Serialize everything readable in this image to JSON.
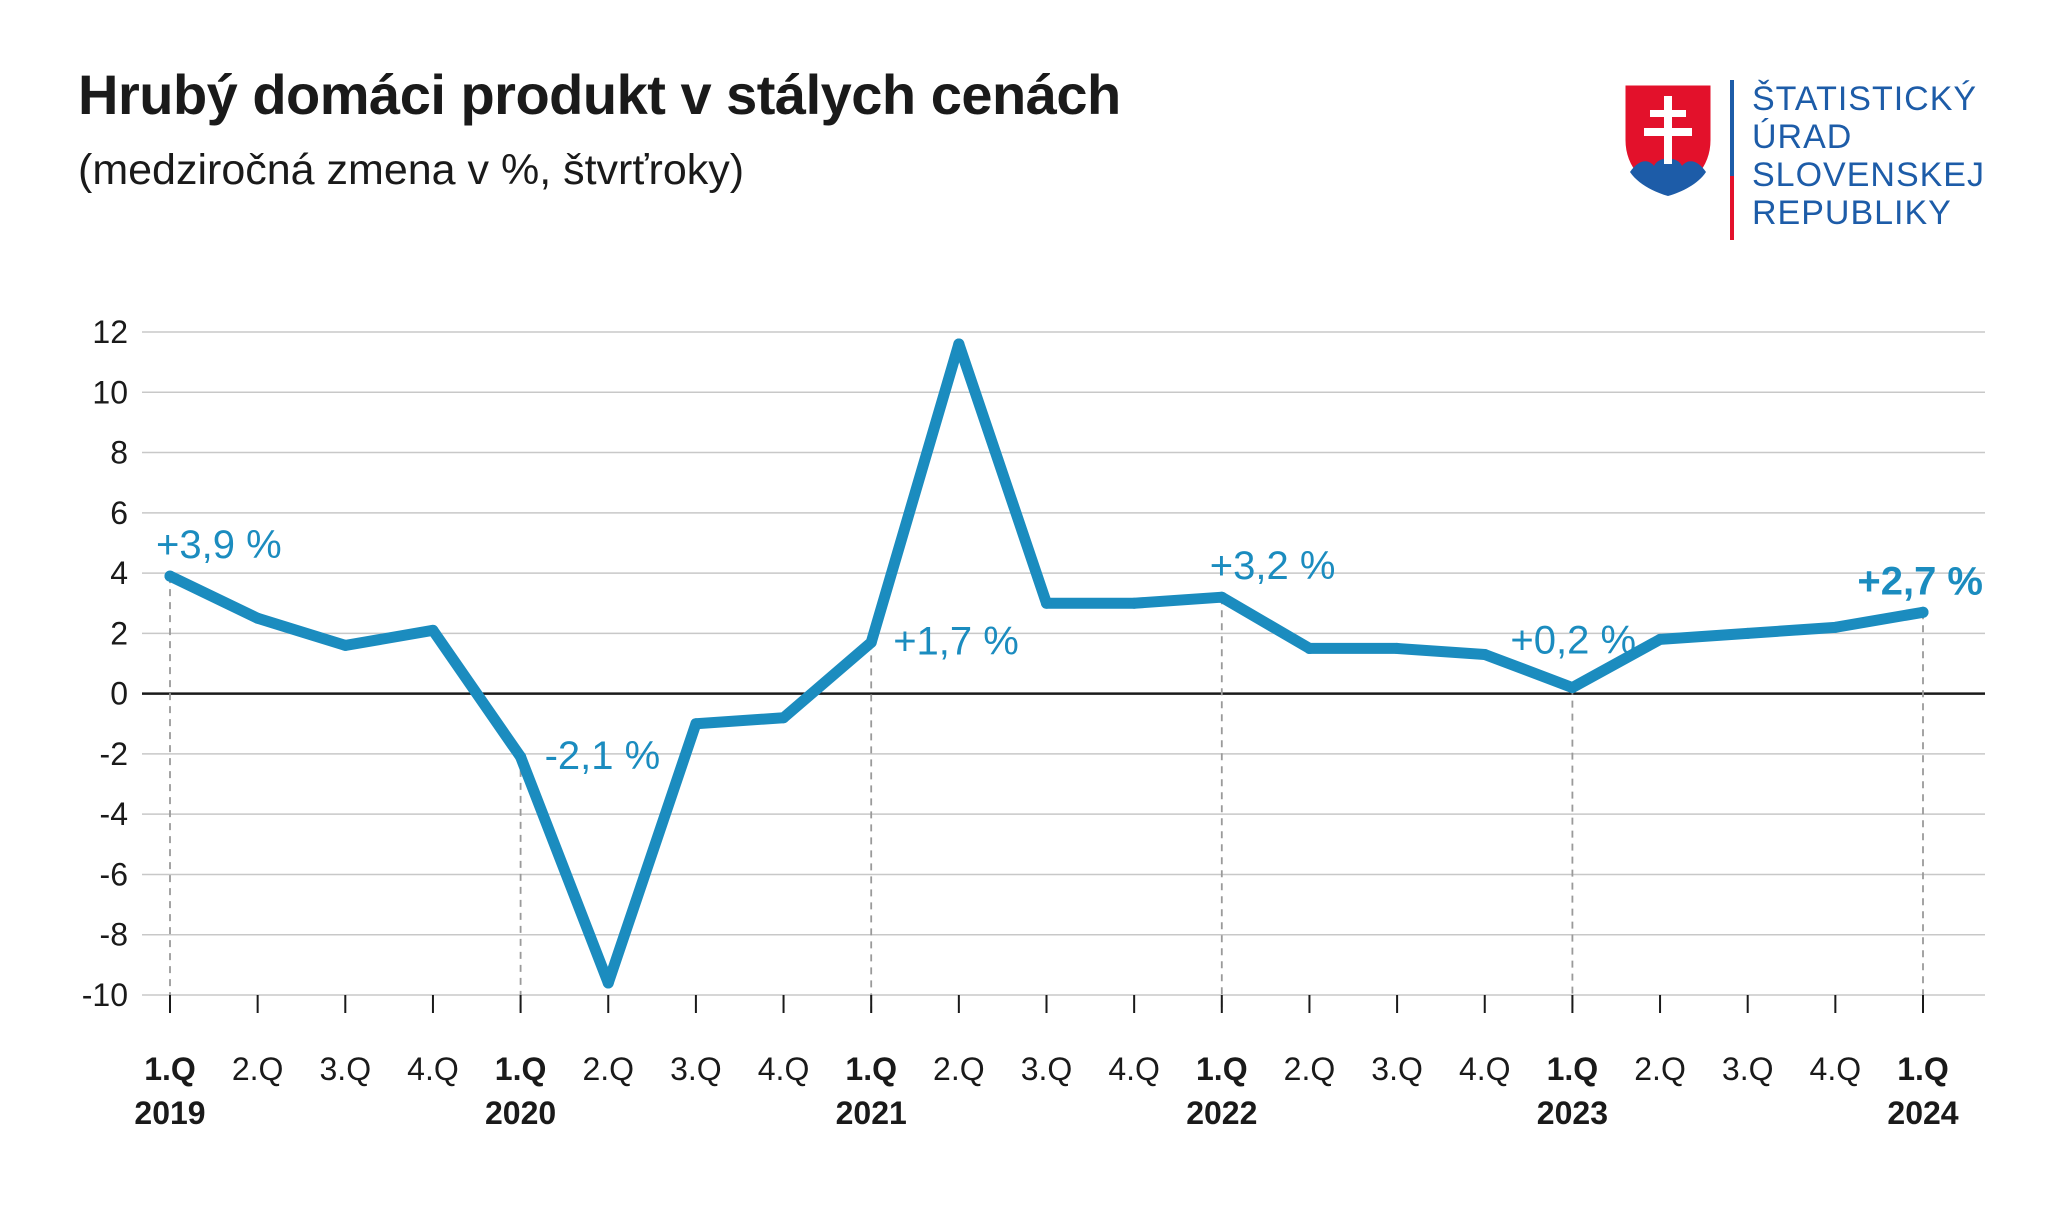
{
  "header": {
    "title": "Hrubý domáci produkt v stálych cenách",
    "subtitle": "(medziročná zmena v %, štvrťroky)"
  },
  "logo": {
    "lines": [
      "ŠTATISTICKÝ",
      "ÚRAD",
      "SLOVENSKEJ",
      "REPUBLIKY"
    ],
    "icon": "slovak-coat-of-arms-icon"
  },
  "colors": {
    "line": "#1b8cbf",
    "grid": "#c8c8c8",
    "zero_line": "#1a1a1a",
    "brand_blue": "#1d5ca8",
    "brand_red": "#e3112b"
  },
  "chart_data": {
    "type": "line",
    "title": "Hrubý domáci produkt v stálych cenách",
    "subtitle": "(medziročná zmena v %, štvrťroky)",
    "ylim": [
      -10,
      12
    ],
    "yticks": [
      12,
      10,
      8,
      6,
      4,
      2,
      0,
      -2,
      -4,
      -6,
      -8,
      -10
    ],
    "grid": true,
    "categories": [
      "1.Q 2019",
      "2.Q",
      "3.Q",
      "4.Q",
      "1.Q 2020",
      "2.Q",
      "3.Q",
      "4.Q",
      "1.Q 2021",
      "2.Q",
      "3.Q",
      "4.Q",
      "1.Q 2022",
      "2.Q",
      "3.Q",
      "4.Q",
      "1.Q 2023",
      "2.Q",
      "3.Q",
      "4.Q",
      "1.Q 2024"
    ],
    "xtick_labels": [
      {
        "q": "1.Q",
        "year": "2019"
      },
      {
        "q": "2.Q",
        "year": ""
      },
      {
        "q": "3.Q",
        "year": ""
      },
      {
        "q": "4.Q",
        "year": ""
      },
      {
        "q": "1.Q",
        "year": "2020"
      },
      {
        "q": "2.Q",
        "year": ""
      },
      {
        "q": "3.Q",
        "year": ""
      },
      {
        "q": "4.Q",
        "year": ""
      },
      {
        "q": "1.Q",
        "year": "2021"
      },
      {
        "q": "2.Q",
        "year": ""
      },
      {
        "q": "3.Q",
        "year": ""
      },
      {
        "q": "4.Q",
        "year": ""
      },
      {
        "q": "1.Q",
        "year": "2022"
      },
      {
        "q": "2.Q",
        "year": ""
      },
      {
        "q": "3.Q",
        "year": ""
      },
      {
        "q": "4.Q",
        "year": ""
      },
      {
        "q": "1.Q",
        "year": "2023"
      },
      {
        "q": "2.Q",
        "year": ""
      },
      {
        "q": "3.Q",
        "year": ""
      },
      {
        "q": "4.Q",
        "year": ""
      },
      {
        "q": "1.Q",
        "year": "2024"
      }
    ],
    "series": [
      {
        "values": [
          3.9,
          2.5,
          1.6,
          2.1,
          -2.1,
          -9.6,
          -1.0,
          -0.8,
          1.7,
          11.6,
          3.0,
          3.0,
          3.2,
          1.5,
          1.5,
          1.3,
          0.2,
          1.8,
          2.0,
          2.2,
          2.7
        ]
      }
    ],
    "annotations": [
      {
        "index": 0,
        "text": "+3,9 %",
        "bold": false
      },
      {
        "index": 4,
        "text": "-2,1 %",
        "bold": false
      },
      {
        "index": 8,
        "text": "+1,7 %",
        "bold": false
      },
      {
        "index": 12,
        "text": "+3,2 %",
        "bold": false
      },
      {
        "index": 16,
        "text": "+0,2 %",
        "bold": false
      },
      {
        "index": 20,
        "text": "+2,7 %",
        "bold": true
      }
    ]
  }
}
